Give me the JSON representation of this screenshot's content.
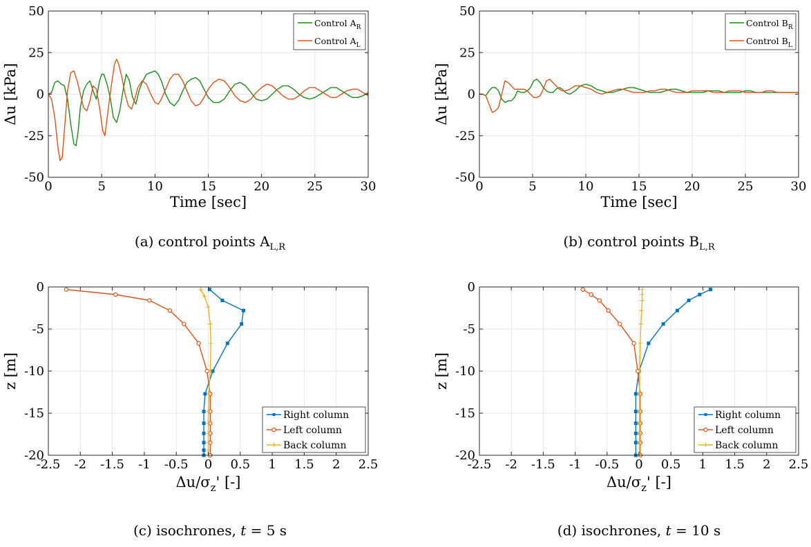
{
  "colors": {
    "green": "#1a8a1a",
    "orange": "#d95319",
    "blue": "#0072bd",
    "yellow": "#edb120",
    "grid": "#e6e6e6",
    "axis": "#262626"
  },
  "captions": [
    {
      "prefix": "(a) control points A",
      "sub": "L,R"
    },
    {
      "prefix": "(b) control points B",
      "sub": "L,R"
    },
    {
      "prefix": "(c) isochrones, ",
      "math": "t",
      "suffix": " = 5 s"
    },
    {
      "prefix": "(d) isochrones, ",
      "math": "t",
      "suffix": " = 10 s"
    }
  ],
  "chart_data": [
    {
      "id": "a",
      "type": "line",
      "xlabel": "Time [sec]",
      "ylabel": "Δu [kPa]",
      "xlim": [
        0,
        30
      ],
      "ylim": [
        -50,
        50
      ],
      "xticks": [
        0,
        5,
        10,
        15,
        20,
        25,
        30
      ],
      "yticks": [
        -50,
        -25,
        0,
        25,
        50
      ],
      "grid": true,
      "legend_position": "top-right",
      "series": [
        {
          "name": "Control A",
          "sub": "R",
          "color": "#1a8a1a",
          "x": [
            0,
            0.3,
            0.6,
            0.9,
            1.2,
            1.5,
            1.8,
            2.1,
            2.4,
            2.6,
            2.8,
            3.0,
            3.3,
            3.6,
            3.9,
            4.2,
            4.5,
            4.8,
            5.0,
            5.2,
            5.5,
            5.8,
            6.1,
            6.4,
            6.7,
            7.0,
            7.3,
            7.6,
            7.9,
            8.2,
            8.5,
            8.8,
            9.2,
            9.6,
            10.0,
            10.3,
            10.6,
            11.0,
            11.4,
            11.8,
            12.2,
            12.6,
            13.0,
            13.4,
            13.8,
            14.2,
            14.6,
            15.0,
            15.5,
            16.0,
            16.5,
            17.0,
            17.5,
            18.0,
            18.5,
            19.0,
            19.5,
            20.0,
            20.5,
            21.0,
            21.5,
            22.0,
            22.5,
            23.0,
            23.5,
            24.0,
            24.5,
            25.0,
            25.5,
            26.0,
            26.5,
            27.0,
            27.5,
            28.0,
            28.5,
            29.0,
            29.5,
            30.0
          ],
          "y": [
            0,
            1,
            7,
            8,
            6,
            5,
            -3,
            -18,
            -30,
            -31,
            -22,
            -8,
            2,
            6,
            8,
            2,
            -3,
            8,
            12,
            12,
            6,
            -2,
            -14,
            -17,
            -10,
            2,
            12,
            8,
            -2,
            -6,
            2,
            7,
            12,
            13,
            14,
            12,
            8,
            0,
            -5,
            -7,
            -4,
            2,
            7,
            9,
            10,
            8,
            3,
            -2,
            -5,
            -5,
            -3,
            2,
            6,
            7,
            5,
            1,
            -3,
            -4,
            -3,
            0,
            3,
            5,
            5,
            3,
            0,
            -2,
            -3,
            -2,
            0,
            2,
            4,
            4,
            2,
            0,
            -2,
            -2,
            -1,
            1
          ]
        },
        {
          "name": "Control A",
          "sub": "L",
          "color": "#d95319",
          "x": [
            0,
            0.3,
            0.6,
            0.9,
            1.1,
            1.3,
            1.5,
            1.8,
            2.1,
            2.4,
            2.7,
            3.0,
            3.3,
            3.6,
            3.9,
            4.2,
            4.5,
            4.8,
            5.1,
            5.3,
            5.6,
            5.9,
            6.2,
            6.4,
            6.6,
            6.9,
            7.2,
            7.5,
            7.8,
            8.1,
            8.4,
            8.8,
            9.2,
            9.6,
            10.0,
            10.3,
            10.6,
            11.0,
            11.4,
            11.8,
            12.2,
            12.6,
            13.0,
            13.4,
            13.8,
            14.2,
            14.6,
            15.0,
            15.5,
            16.0,
            16.5,
            17.0,
            17.5,
            18.0,
            18.5,
            19.0,
            19.5,
            20.0,
            20.5,
            21.0,
            21.5,
            22.0,
            22.5,
            23.0,
            23.5,
            24.0,
            24.5,
            25.0,
            25.5,
            26.0,
            26.5,
            27.0,
            27.5,
            28.0,
            28.5,
            29.0,
            29.5,
            30.0
          ],
          "y": [
            0,
            -3,
            -14,
            -32,
            -40,
            -38,
            -22,
            2,
            13,
            14,
            8,
            0,
            -8,
            -10,
            -4,
            5,
            3,
            -8,
            -22,
            -25,
            -10,
            5,
            18,
            21,
            18,
            10,
            0,
            -7,
            -9,
            -3,
            4,
            8,
            6,
            0,
            -5,
            -6,
            -3,
            3,
            9,
            12,
            12,
            8,
            2,
            -4,
            -7,
            -6,
            -2,
            3,
            7,
            9,
            8,
            4,
            -1,
            -4,
            -5,
            -3,
            1,
            4,
            6,
            5,
            2,
            -1,
            -3,
            -3,
            -1,
            2,
            4,
            4,
            2,
            0,
            -2,
            -2,
            0,
            2,
            3,
            3,
            1,
            -1
          ]
        }
      ]
    },
    {
      "id": "b",
      "type": "line",
      "xlabel": "Time [sec]",
      "ylabel": "Δu [kPa]",
      "xlim": [
        0,
        30
      ],
      "ylim": [
        -50,
        50
      ],
      "xticks": [
        0,
        5,
        10,
        15,
        20,
        25,
        30
      ],
      "yticks": [
        -50,
        -25,
        0,
        25,
        50
      ],
      "grid": true,
      "legend_position": "top-right",
      "series": [
        {
          "name": "Control B",
          "sub": "R",
          "color": "#1a8a1a",
          "x": [
            0,
            0.3,
            0.6,
            0.9,
            1.2,
            1.5,
            1.8,
            2.1,
            2.4,
            2.7,
            3.0,
            3.3,
            3.6,
            3.9,
            4.2,
            4.5,
            4.8,
            5.1,
            5.4,
            5.7,
            6.0,
            6.3,
            6.6,
            6.9,
            7.2,
            7.5,
            7.8,
            8.1,
            8.5,
            9.0,
            9.5,
            10.0,
            10.5,
            11.0,
            11.5,
            12.0,
            12.5,
            13.0,
            13.5,
            14.0,
            14.5,
            15.0,
            15.5,
            16.0,
            16.5,
            17.0,
            17.5,
            18.0,
            18.5,
            19.0,
            19.5,
            20.0,
            20.5,
            21.0,
            21.5,
            22.0,
            22.5,
            23.0,
            23.5,
            24.0,
            24.5,
            25.0,
            25.5,
            26.0,
            26.5,
            27.0,
            27.5,
            28.0,
            28.5,
            29.0,
            29.5,
            30.0
          ],
          "y": [
            0,
            0,
            -1,
            2,
            4,
            4,
            2,
            -3,
            -5,
            -4,
            -4,
            -2,
            2,
            1,
            1,
            2,
            4,
            8,
            9,
            7,
            4,
            2,
            1,
            1,
            3,
            4,
            3,
            1,
            0,
            2,
            5,
            6,
            5,
            3,
            2,
            1,
            1,
            2,
            3,
            4,
            4,
            3,
            2,
            1,
            1,
            1,
            2,
            3,
            3,
            2,
            1,
            1,
            1,
            1,
            2,
            2,
            2,
            1,
            1,
            1,
            1,
            2,
            2,
            1,
            1,
            1,
            1,
            1,
            1,
            1,
            1,
            1
          ]
        },
        {
          "name": "Control B",
          "sub": "L",
          "color": "#d95319",
          "x": [
            0,
            0.3,
            0.6,
            0.9,
            1.2,
            1.5,
            1.8,
            2.1,
            2.4,
            2.7,
            3.0,
            3.3,
            3.6,
            3.9,
            4.2,
            4.5,
            4.8,
            5.1,
            5.4,
            5.7,
            6.0,
            6.3,
            6.6,
            6.9,
            7.2,
            7.5,
            7.8,
            8.1,
            8.5,
            9.0,
            9.5,
            10.0,
            10.5,
            11.0,
            11.5,
            12.0,
            12.5,
            13.0,
            13.5,
            14.0,
            14.5,
            15.0,
            15.5,
            16.0,
            16.5,
            17.0,
            17.5,
            18.0,
            18.5,
            19.0,
            19.5,
            20.0,
            20.5,
            21.0,
            21.5,
            22.0,
            22.5,
            23.0,
            23.5,
            24.0,
            24.5,
            25.0,
            25.5,
            26.0,
            26.5,
            27.0,
            27.5,
            28.0,
            28.5,
            29.0,
            29.5,
            30.0
          ],
          "y": [
            0,
            0,
            -1,
            -6,
            -11,
            -10,
            -8,
            0,
            8,
            7,
            5,
            3,
            3,
            3,
            3,
            2,
            0,
            -2,
            -2,
            -1,
            3,
            8,
            9,
            7,
            5,
            3,
            2,
            2,
            3,
            5,
            5,
            4,
            3,
            1,
            0,
            1,
            2,
            3,
            3,
            2,
            1,
            1,
            1,
            2,
            2,
            3,
            3,
            2,
            1,
            1,
            1,
            2,
            2,
            2,
            2,
            1,
            1,
            1,
            2,
            2,
            2,
            1,
            1,
            1,
            1,
            2,
            2,
            1,
            1,
            1,
            1,
            1
          ]
        }
      ]
    },
    {
      "id": "c",
      "type": "line",
      "xlabel_main": "Δu/σ",
      "xlabel_sub": "z",
      "xlabel_tail": "' [-]",
      "ylabel": "z [m]",
      "xlim": [
        -2.5,
        2.5
      ],
      "ylim": [
        -20,
        0
      ],
      "xticks": [
        -2.5,
        -2,
        -1.5,
        -1,
        -0.5,
        0,
        0.5,
        1,
        1.5,
        2,
        2.5
      ],
      "xticklabels": [
        "-2.5",
        "-2",
        "-1.5",
        "-1",
        "-0.5",
        "0",
        "0.5",
        "1",
        "1.5",
        "2",
        "2.5"
      ],
      "yticks": [
        0,
        -5,
        -10,
        -15,
        -20
      ],
      "grid": true,
      "legend_position": "bottom-right",
      "series": [
        {
          "name": "Right column",
          "marker": "square",
          "color": "#0072bd",
          "x": [
            0.02,
            0.22,
            0.55,
            0.52,
            0.3,
            0.07,
            -0.05,
            -0.07,
            -0.07,
            -0.07,
            -0.07,
            -0.07,
            -0.07
          ],
          "y": [
            -0.3,
            -1.6,
            -2.8,
            -4.4,
            -6.7,
            -10.0,
            -12.7,
            -14.8,
            -16.2,
            -17.4,
            -18.5,
            -19.4,
            -20.0
          ]
        },
        {
          "name": "Left column",
          "marker": "circle",
          "color": "#d95319",
          "x": [
            -2.22,
            -1.45,
            -0.92,
            -0.6,
            -0.38,
            -0.15,
            -0.02,
            0.03,
            0.03,
            0.03,
            0.03,
            0.03,
            0.03
          ],
          "y": [
            -0.3,
            -0.9,
            -1.6,
            -2.8,
            -4.4,
            -6.7,
            -10.0,
            -12.7,
            -14.8,
            -16.2,
            -17.4,
            -18.5,
            -20.0
          ]
        },
        {
          "name": "Back column",
          "marker": "plus",
          "color": "#edb120",
          "x": [
            -0.12,
            -0.06,
            0.0,
            0.03,
            0.04,
            0.03,
            0.01,
            0.0,
            0.0,
            0.0,
            0.0,
            0.0,
            0.0
          ],
          "y": [
            -0.3,
            -1.1,
            -2.4,
            -4.4,
            -6.7,
            -10.0,
            -12.7,
            -14.8,
            -16.2,
            -17.4,
            -18.5,
            -19.4,
            -20.0
          ]
        }
      ]
    },
    {
      "id": "d",
      "type": "line",
      "xlabel_main": "Δu/σ",
      "xlabel_sub": "z",
      "xlabel_tail": "' [-]",
      "ylabel": "z [m]",
      "xlim": [
        -2.5,
        2.5
      ],
      "ylim": [
        -20,
        0
      ],
      "xticks": [
        -2.5,
        -2,
        -1.5,
        -1,
        -0.5,
        0,
        0.5,
        1,
        1.5,
        2,
        2.5
      ],
      "xticklabels": [
        "-2.5",
        "-2",
        "-1.5",
        "-1",
        "-0.5",
        "0",
        "0.5",
        "1",
        "1.5",
        "2",
        "2.5"
      ],
      "yticks": [
        0,
        -5,
        -10,
        -15,
        -20
      ],
      "grid": true,
      "legend_position": "bottom-right",
      "series": [
        {
          "name": "Right column",
          "marker": "square",
          "color": "#0072bd",
          "x": [
            1.12,
            0.95,
            0.78,
            0.6,
            0.38,
            0.15,
            0.0,
            -0.05,
            -0.05,
            -0.05,
            -0.05,
            -0.05,
            -0.05
          ],
          "y": [
            -0.3,
            -0.9,
            -1.6,
            -2.8,
            -4.4,
            -6.7,
            -10.0,
            -12.7,
            -14.8,
            -16.2,
            -17.4,
            -18.5,
            -20.0
          ]
        },
        {
          "name": "Left column",
          "marker": "circle",
          "color": "#d95319",
          "x": [
            -0.88,
            -0.75,
            -0.62,
            -0.48,
            -0.3,
            -0.08,
            -0.02,
            0.02,
            0.02,
            0.02,
            0.02,
            0.02,
            0.02
          ],
          "y": [
            -0.3,
            -0.9,
            -1.6,
            -2.8,
            -4.4,
            -6.7,
            -10.0,
            -12.7,
            -14.8,
            -16.2,
            -17.4,
            -18.5,
            -20.0
          ]
        },
        {
          "name": "Back column",
          "marker": "plus",
          "color": "#edb120",
          "x": [
            0.05,
            0.05,
            0.05,
            0.04,
            0.03,
            0.02,
            0.01,
            0.01,
            0.01,
            0.01,
            0.01,
            0.01,
            0.01
          ],
          "y": [
            -0.3,
            -0.9,
            -1.6,
            -2.8,
            -4.4,
            -6.7,
            -10.0,
            -12.7,
            -14.8,
            -16.2,
            -17.4,
            -18.5,
            -20.0
          ]
        }
      ]
    }
  ]
}
